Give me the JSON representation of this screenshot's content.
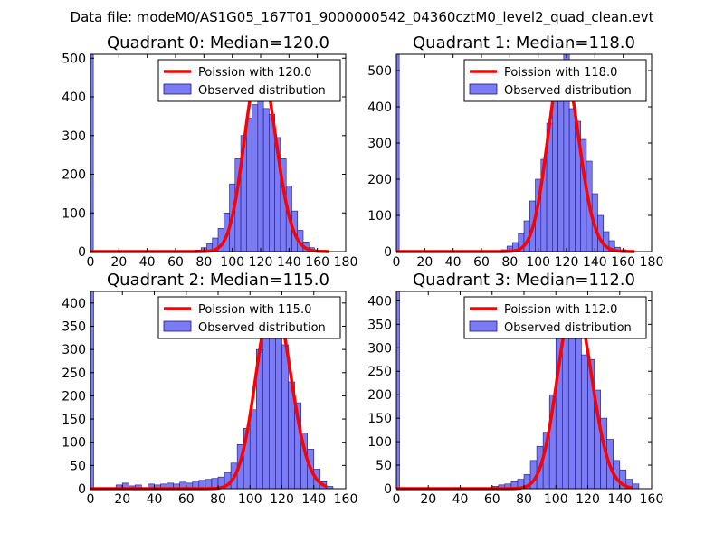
{
  "suptitle": "Data file: modeM0/AS1G05_167T01_9000000542_04360cztM0_level2_quad_clean.evt",
  "chart_data": [
    {
      "type": "bar",
      "title": "Quadrant 0: Median=120.0",
      "xlim": [
        0,
        180
      ],
      "ylim": [
        0,
        510
      ],
      "xticks": [
        0,
        20,
        40,
        60,
        80,
        100,
        120,
        140,
        160,
        180
      ],
      "yticks": [
        0,
        100,
        200,
        300,
        400,
        500
      ],
      "bins": [
        [
          0,
          2,
          510
        ],
        [
          74,
          78,
          4
        ],
        [
          78,
          82,
          10
        ],
        [
          82,
          86,
          20
        ],
        [
          86,
          90,
          35
        ],
        [
          90,
          94,
          60
        ],
        [
          94,
          98,
          100
        ],
        [
          98,
          102,
          175
        ],
        [
          102,
          106,
          240
        ],
        [
          106,
          110,
          300
        ],
        [
          110,
          114,
          345
        ],
        [
          114,
          118,
          380
        ],
        [
          118,
          122,
          395
        ],
        [
          122,
          126,
          370
        ],
        [
          126,
          130,
          355
        ],
        [
          130,
          134,
          295
        ],
        [
          134,
          138,
          240
        ],
        [
          138,
          142,
          170
        ],
        [
          142,
          146,
          105
        ],
        [
          146,
          150,
          55
        ],
        [
          150,
          154,
          25
        ],
        [
          154,
          158,
          10
        ],
        [
          158,
          162,
          4
        ]
      ],
      "series": [
        {
          "name": "Poission with 120.0",
          "kind": "line",
          "mean": 120,
          "peak": 485
        },
        {
          "name": "Observed distribution",
          "kind": "bar"
        }
      ],
      "legend": "top-right"
    },
    {
      "type": "bar",
      "title": "Quadrant 1: Median=118.0",
      "xlim": [
        0,
        180
      ],
      "ylim": [
        0,
        545
      ],
      "xticks": [
        0,
        20,
        40,
        60,
        80,
        100,
        120,
        140,
        160,
        180
      ],
      "yticks": [
        0,
        100,
        200,
        300,
        400,
        500
      ],
      "bins": [
        [
          0,
          2,
          545
        ],
        [
          74,
          78,
          5
        ],
        [
          78,
          82,
          15
        ],
        [
          82,
          86,
          25
        ],
        [
          86,
          90,
          50
        ],
        [
          90,
          94,
          85
        ],
        [
          94,
          98,
          140
        ],
        [
          98,
          102,
          200
        ],
        [
          102,
          106,
          255
        ],
        [
          106,
          110,
          355
        ],
        [
          110,
          114,
          420
        ],
        [
          114,
          118,
          455
        ],
        [
          118,
          122,
          545
        ],
        [
          122,
          126,
          395
        ],
        [
          126,
          130,
          360
        ],
        [
          130,
          134,
          310
        ],
        [
          134,
          138,
          250
        ],
        [
          138,
          142,
          160
        ],
        [
          142,
          146,
          100
        ],
        [
          146,
          150,
          55
        ],
        [
          150,
          154,
          30
        ],
        [
          154,
          158,
          12
        ],
        [
          158,
          162,
          5
        ]
      ],
      "series": [
        {
          "name": "Poission with 118.0",
          "kind": "line",
          "mean": 118,
          "peak": 520
        },
        {
          "name": "Observed distribution",
          "kind": "bar"
        }
      ],
      "legend": "top-right"
    },
    {
      "type": "bar",
      "title": "Quadrant 2: Median=115.0",
      "xlim": [
        0,
        160
      ],
      "ylim": [
        0,
        425
      ],
      "xticks": [
        0,
        20,
        40,
        60,
        80,
        100,
        120,
        140,
        160
      ],
      "yticks": [
        0,
        50,
        100,
        150,
        200,
        250,
        300,
        350,
        400
      ],
      "bins": [
        [
          0,
          2,
          425
        ],
        [
          16,
          20,
          8
        ],
        [
          20,
          24,
          12
        ],
        [
          24,
          28,
          6
        ],
        [
          28,
          32,
          8
        ],
        [
          36,
          40,
          10
        ],
        [
          40,
          44,
          8
        ],
        [
          44,
          48,
          10
        ],
        [
          48,
          52,
          12
        ],
        [
          52,
          56,
          10
        ],
        [
          56,
          60,
          14
        ],
        [
          60,
          64,
          12
        ],
        [
          64,
          68,
          16
        ],
        [
          68,
          72,
          18
        ],
        [
          72,
          76,
          20
        ],
        [
          76,
          80,
          22
        ],
        [
          80,
          84,
          25
        ],
        [
          84,
          88,
          35
        ],
        [
          88,
          92,
          55
        ],
        [
          92,
          96,
          95
        ],
        [
          96,
          100,
          130
        ],
        [
          100,
          104,
          170
        ],
        [
          104,
          108,
          300
        ],
        [
          108,
          112,
          370
        ],
        [
          112,
          116,
          390
        ],
        [
          116,
          120,
          385
        ],
        [
          120,
          124,
          310
        ],
        [
          124,
          128,
          230
        ],
        [
          128,
          132,
          185
        ],
        [
          132,
          136,
          120
        ],
        [
          136,
          140,
          85
        ],
        [
          140,
          144,
          42
        ],
        [
          144,
          148,
          15
        ],
        [
          148,
          152,
          5
        ]
      ],
      "series": [
        {
          "name": "Poission with 115.0",
          "kind": "line",
          "mean": 115,
          "peak": 410
        },
        {
          "name": "Observed distribution",
          "kind": "bar"
        }
      ],
      "legend": "top-right"
    },
    {
      "type": "bar",
      "title": "Quadrant 3: Median=112.0",
      "xlim": [
        0,
        160
      ],
      "ylim": [
        0,
        420
      ],
      "xticks": [
        0,
        20,
        40,
        60,
        80,
        100,
        120,
        140,
        160
      ],
      "yticks": [
        0,
        50,
        100,
        150,
        200,
        250,
        300,
        350,
        400
      ],
      "bins": [
        [
          0,
          2,
          420
        ],
        [
          60,
          64,
          5
        ],
        [
          64,
          68,
          8
        ],
        [
          68,
          72,
          10
        ],
        [
          72,
          76,
          15
        ],
        [
          76,
          80,
          20
        ],
        [
          80,
          84,
          30
        ],
        [
          84,
          88,
          60
        ],
        [
          88,
          92,
          90
        ],
        [
          92,
          96,
          120
        ],
        [
          96,
          100,
          200
        ],
        [
          100,
          104,
          400
        ],
        [
          104,
          108,
          360
        ],
        [
          108,
          112,
          380
        ],
        [
          112,
          116,
          335
        ],
        [
          116,
          120,
          285
        ],
        [
          120,
          124,
          275
        ],
        [
          124,
          128,
          210
        ],
        [
          128,
          132,
          150
        ],
        [
          132,
          136,
          105
        ],
        [
          136,
          140,
          60
        ],
        [
          140,
          144,
          40
        ],
        [
          144,
          148,
          20
        ],
        [
          148,
          152,
          10
        ]
      ],
      "series": [
        {
          "name": "Poission with 112.0",
          "kind": "line",
          "mean": 112,
          "peak": 400
        },
        {
          "name": "Observed distribution",
          "kind": "bar"
        }
      ],
      "legend": "top-right"
    }
  ]
}
